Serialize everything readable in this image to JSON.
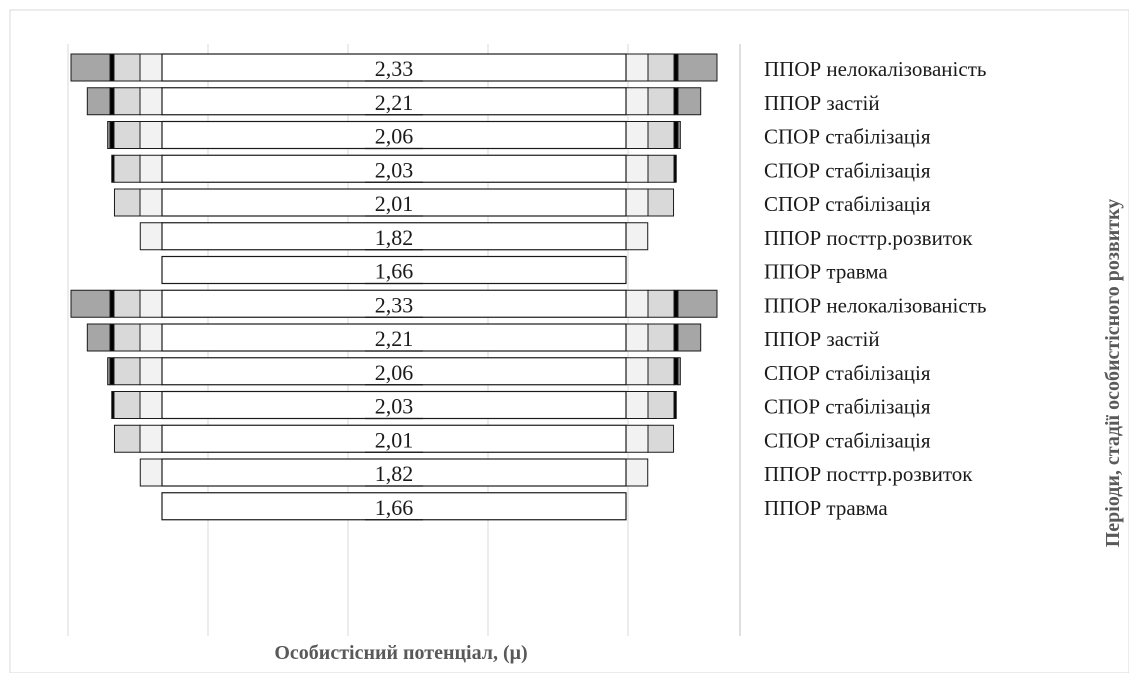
{
  "chart_data": {
    "type": "bar",
    "orientation": "horizontal-funnel",
    "xlabel": "Особистісний потенціал, (μ)",
    "ylabel": "Періоди, стадії особистісного розвитку",
    "grid": true,
    "legend": "none",
    "colors": {
      "segment_light": "#f2f2f2",
      "segment_mid": "#d9d9d9",
      "segment_dark": "#a6a6a6",
      "segment_black": "#000000",
      "outline": "#1a1a1a",
      "grid": "#d9d9d9",
      "axis_line": "#bfbfbf",
      "text": "#1a1a1a",
      "axis_title": "#595959"
    },
    "rows": [
      {
        "value": "2,33",
        "category": "ППОР нелокалізованість"
      },
      {
        "value": "2,21",
        "category": "ППОР застій"
      },
      {
        "value": "2,06",
        "category": "СПОР стабілізація"
      },
      {
        "value": "2,03",
        "category": "СПОР стабілізація"
      },
      {
        "value": "2,01",
        "category": "СПОР стабілізація"
      },
      {
        "value": "1,82",
        "category": "ППОР посттр.розвиток"
      },
      {
        "value": "1,66",
        "category": "ППОР травма"
      },
      {
        "value": "2,33",
        "category": "ППОР нелокалізованість"
      },
      {
        "value": "2,21",
        "category": "ППОР застій"
      },
      {
        "value": "2,06",
        "category": "СПОР стабілізація"
      },
      {
        "value": "2,03",
        "category": "СПОР стабілізація"
      },
      {
        "value": "2,01",
        "category": "СПОР стабілізація"
      },
      {
        "value": "1,82",
        "category": "ППОР посттр.розвиток"
      },
      {
        "value": "1,66",
        "category": "ППОР травма"
      }
    ]
  }
}
